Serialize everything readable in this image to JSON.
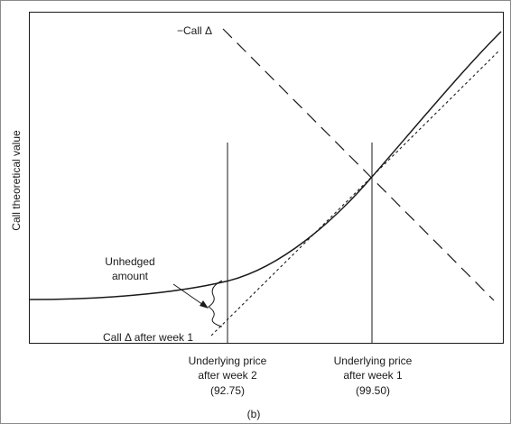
{
  "panel_label": "(b)",
  "axis": {
    "ylabel": "Call theoretical value"
  },
  "labels": {
    "neg_call_delta": "−Call Δ",
    "unhedged_line1": "Unhedged",
    "unhedged_line2": "amount",
    "call_delta_after_week1": "Call Δ after week 1"
  },
  "markers": [
    {
      "line1": "Underlying price",
      "line2": "after week 2",
      "price": "(92.75)"
    },
    {
      "line1": "Underlying price",
      "line2": "after week 1",
      "price": "(99.50)"
    }
  ]
}
